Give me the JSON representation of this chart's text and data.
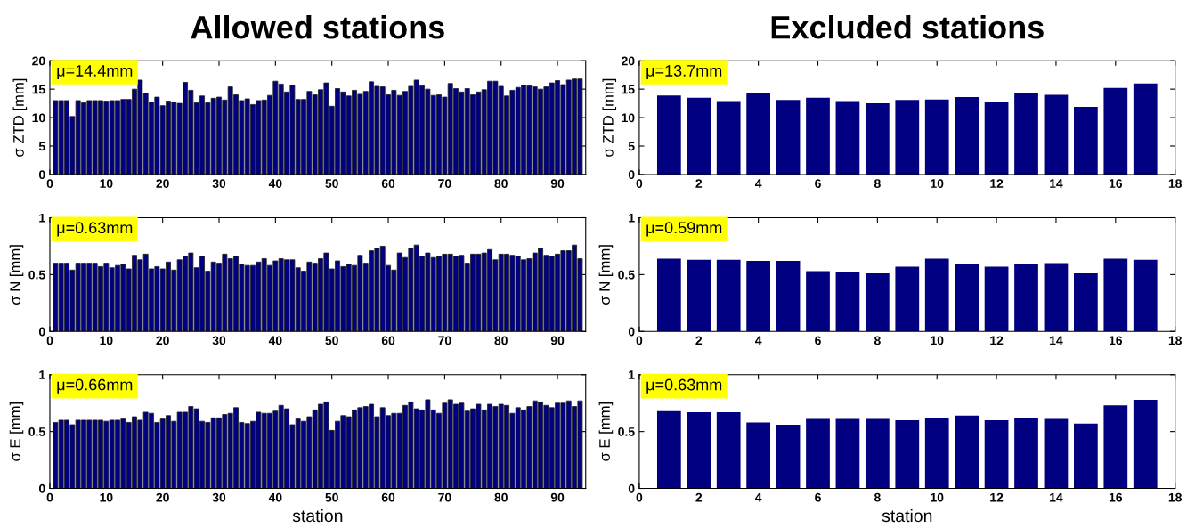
{
  "chart_data": [
    {
      "type": "bar",
      "title": "Allowed stations",
      "ylabel": "σ ZTD [mm]",
      "color": "#000080",
      "annotations": [
        "μ=14.4mm"
      ],
      "xlim": [
        0,
        95
      ],
      "xticks": [
        0,
        10,
        20,
        30,
        40,
        50,
        60,
        70,
        80,
        90
      ],
      "ylim": [
        0,
        20
      ],
      "yticks": [
        0,
        5,
        10,
        15,
        20
      ],
      "grid": false,
      "x": [
        1,
        2,
        3,
        4,
        5,
        6,
        7,
        8,
        9,
        10,
        11,
        12,
        13,
        14,
        15,
        16,
        17,
        18,
        19,
        20,
        21,
        22,
        23,
        24,
        25,
        26,
        27,
        28,
        29,
        30,
        31,
        32,
        33,
        34,
        35,
        36,
        37,
        38,
        39,
        40,
        41,
        42,
        43,
        44,
        45,
        46,
        47,
        48,
        49,
        50,
        51,
        52,
        53,
        54,
        55,
        56,
        57,
        58,
        59,
        60,
        61,
        62,
        63,
        64,
        65,
        66,
        67,
        68,
        69,
        70,
        71,
        72,
        73,
        74,
        75,
        76,
        77,
        78,
        79,
        80,
        81,
        82,
        83,
        84,
        85,
        86,
        87,
        88,
        89,
        90,
        91,
        92,
        93,
        94
      ],
      "values": [
        13.0,
        13.0,
        13.0,
        10.2,
        13.0,
        12.6,
        13.0,
        13.0,
        13.0,
        12.9,
        13.0,
        13.0,
        13.2,
        13.2,
        15.0,
        16.6,
        14.3,
        12.7,
        13.6,
        12.1,
        12.9,
        12.7,
        12.5,
        16.2,
        14.8,
        12.6,
        13.8,
        12.6,
        13.4,
        13.6,
        13.1,
        15.4,
        14.0,
        13.0,
        13.3,
        12.3,
        13.0,
        13.1,
        13.9,
        16.4,
        15.9,
        14.5,
        15.7,
        13.2,
        13.2,
        14.6,
        14.0,
        14.9,
        16.1,
        12.0,
        15.1,
        14.5,
        13.8,
        14.8,
        14.1,
        14.6,
        16.3,
        15.5,
        15.4,
        14.0,
        14.8,
        13.9,
        14.6,
        15.5,
        16.6,
        15.6,
        15.0,
        13.9,
        14.0,
        13.6,
        16.0,
        15.1,
        14.5,
        15.1,
        14.0,
        14.5,
        14.9,
        16.4,
        16.4,
        15.5,
        13.8,
        14.8,
        15.3,
        15.7,
        15.6,
        15.4,
        15.0,
        15.4,
        16.1,
        16.5,
        15.8,
        16.6,
        16.8,
        16.8
      ]
    },
    {
      "type": "bar",
      "title": "Excluded stations",
      "ylabel": "σ ZTD [mm]",
      "color": "#000080",
      "annotations": [
        "μ=13.7mm"
      ],
      "xlim": [
        0,
        18
      ],
      "xticks": [
        0,
        2,
        4,
        6,
        8,
        10,
        12,
        14,
        16,
        18
      ],
      "ylim": [
        0,
        20
      ],
      "yticks": [
        0,
        5,
        10,
        15,
        20
      ],
      "grid": false,
      "x": [
        1,
        2,
        3,
        4,
        5,
        6,
        7,
        8,
        9,
        10,
        11,
        12,
        13,
        14,
        15,
        16,
        17
      ],
      "values": [
        13.9,
        13.5,
        12.9,
        14.3,
        13.1,
        13.5,
        12.9,
        12.5,
        13.1,
        13.2,
        13.6,
        12.8,
        14.3,
        14.0,
        11.9,
        15.2,
        16.0
      ]
    },
    {
      "type": "bar",
      "ylabel": "σ N [mm]",
      "color": "#000080",
      "annotations": [
        "μ=0.63mm"
      ],
      "xlim": [
        0,
        95
      ],
      "xticks": [
        0,
        10,
        20,
        30,
        40,
        50,
        60,
        70,
        80,
        90
      ],
      "ylim": [
        0,
        1
      ],
      "yticks": [
        0,
        0.5,
        1
      ],
      "grid": false,
      "x": [
        1,
        2,
        3,
        4,
        5,
        6,
        7,
        8,
        9,
        10,
        11,
        12,
        13,
        14,
        15,
        16,
        17,
        18,
        19,
        20,
        21,
        22,
        23,
        24,
        25,
        26,
        27,
        28,
        29,
        30,
        31,
        32,
        33,
        34,
        35,
        36,
        37,
        38,
        39,
        40,
        41,
        42,
        43,
        44,
        45,
        46,
        47,
        48,
        49,
        50,
        51,
        52,
        53,
        54,
        55,
        56,
        57,
        58,
        59,
        60,
        61,
        62,
        63,
        64,
        65,
        66,
        67,
        68,
        69,
        70,
        71,
        72,
        73,
        74,
        75,
        76,
        77,
        78,
        79,
        80,
        81,
        82,
        83,
        84,
        85,
        86,
        87,
        88,
        89,
        90,
        91,
        92,
        93,
        94
      ],
      "values": [
        0.6,
        0.6,
        0.6,
        0.54,
        0.6,
        0.6,
        0.6,
        0.6,
        0.57,
        0.6,
        0.56,
        0.58,
        0.59,
        0.55,
        0.67,
        0.63,
        0.68,
        0.55,
        0.57,
        0.55,
        0.61,
        0.54,
        0.63,
        0.66,
        0.69,
        0.56,
        0.66,
        0.53,
        0.61,
        0.6,
        0.68,
        0.64,
        0.66,
        0.59,
        0.58,
        0.58,
        0.61,
        0.64,
        0.58,
        0.62,
        0.64,
        0.63,
        0.63,
        0.56,
        0.53,
        0.61,
        0.6,
        0.64,
        0.69,
        0.55,
        0.62,
        0.57,
        0.59,
        0.58,
        0.67,
        0.6,
        0.71,
        0.73,
        0.75,
        0.58,
        0.54,
        0.69,
        0.65,
        0.73,
        0.76,
        0.66,
        0.69,
        0.65,
        0.66,
        0.68,
        0.68,
        0.66,
        0.67,
        0.6,
        0.68,
        0.68,
        0.69,
        0.72,
        0.63,
        0.68,
        0.68,
        0.67,
        0.66,
        0.63,
        0.64,
        0.69,
        0.73,
        0.67,
        0.66,
        0.68,
        0.71,
        0.71,
        0.76,
        0.64
      ]
    },
    {
      "type": "bar",
      "ylabel": "σ N [mm]",
      "color": "#000080",
      "annotations": [
        "μ=0.59mm"
      ],
      "xlim": [
        0,
        18
      ],
      "xticks": [
        0,
        2,
        4,
        6,
        8,
        10,
        12,
        14,
        16,
        18
      ],
      "ylim": [
        0,
        1
      ],
      "yticks": [
        0,
        0.5,
        1
      ],
      "grid": false,
      "x": [
        1,
        2,
        3,
        4,
        5,
        6,
        7,
        8,
        9,
        10,
        11,
        12,
        13,
        14,
        15,
        16,
        17
      ],
      "values": [
        0.64,
        0.63,
        0.63,
        0.62,
        0.62,
        0.53,
        0.52,
        0.51,
        0.57,
        0.64,
        0.59,
        0.57,
        0.59,
        0.6,
        0.51,
        0.64,
        0.63
      ]
    },
    {
      "type": "bar",
      "ylabel": "σ E [mm]",
      "xlabel": "station",
      "color": "#000080",
      "annotations": [
        "μ=0.66mm"
      ],
      "xlim": [
        0,
        95
      ],
      "xticks": [
        0,
        10,
        20,
        30,
        40,
        50,
        60,
        70,
        80,
        90
      ],
      "ylim": [
        0,
        1
      ],
      "yticks": [
        0,
        0.5,
        1
      ],
      "grid": false,
      "x": [
        1,
        2,
        3,
        4,
        5,
        6,
        7,
        8,
        9,
        10,
        11,
        12,
        13,
        14,
        15,
        16,
        17,
        18,
        19,
        20,
        21,
        22,
        23,
        24,
        25,
        26,
        27,
        28,
        29,
        30,
        31,
        32,
        33,
        34,
        35,
        36,
        37,
        38,
        39,
        40,
        41,
        42,
        43,
        44,
        45,
        46,
        47,
        48,
        49,
        50,
        51,
        52,
        53,
        54,
        55,
        56,
        57,
        58,
        59,
        60,
        61,
        62,
        63,
        64,
        65,
        66,
        67,
        68,
        69,
        70,
        71,
        72,
        73,
        74,
        75,
        76,
        77,
        78,
        79,
        80,
        81,
        82,
        83,
        84,
        85,
        86,
        87,
        88,
        89,
        90,
        91,
        92,
        93,
        94
      ],
      "values": [
        0.58,
        0.6,
        0.6,
        0.56,
        0.6,
        0.6,
        0.6,
        0.6,
        0.6,
        0.59,
        0.6,
        0.6,
        0.61,
        0.58,
        0.63,
        0.6,
        0.67,
        0.66,
        0.58,
        0.61,
        0.64,
        0.59,
        0.67,
        0.67,
        0.72,
        0.7,
        0.59,
        0.58,
        0.62,
        0.62,
        0.65,
        0.66,
        0.71,
        0.58,
        0.57,
        0.59,
        0.67,
        0.66,
        0.66,
        0.68,
        0.73,
        0.7,
        0.56,
        0.61,
        0.59,
        0.63,
        0.69,
        0.74,
        0.76,
        0.51,
        0.59,
        0.64,
        0.63,
        0.69,
        0.71,
        0.72,
        0.74,
        0.63,
        0.71,
        0.64,
        0.66,
        0.66,
        0.73,
        0.76,
        0.7,
        0.69,
        0.78,
        0.69,
        0.66,
        0.75,
        0.78,
        0.74,
        0.75,
        0.68,
        0.7,
        0.74,
        0.69,
        0.74,
        0.72,
        0.74,
        0.73,
        0.66,
        0.71,
        0.69,
        0.72,
        0.77,
        0.76,
        0.73,
        0.71,
        0.75,
        0.75,
        0.77,
        0.72,
        0.77
      ]
    },
    {
      "type": "bar",
      "ylabel": "σ E [mm]",
      "xlabel": "station",
      "color": "#000080",
      "annotations": [
        "μ=0.63mm"
      ],
      "xlim": [
        0,
        18
      ],
      "xticks": [
        0,
        2,
        4,
        6,
        8,
        10,
        12,
        14,
        16,
        18
      ],
      "ylim": [
        0,
        1
      ],
      "yticks": [
        0,
        0.5,
        1
      ],
      "grid": false,
      "x": [
        1,
        2,
        3,
        4,
        5,
        6,
        7,
        8,
        9,
        10,
        11,
        12,
        13,
        14,
        15,
        16,
        17
      ],
      "values": [
        0.68,
        0.67,
        0.67,
        0.58,
        0.56,
        0.61,
        0.61,
        0.61,
        0.6,
        0.62,
        0.64,
        0.6,
        0.62,
        0.61,
        0.57,
        0.73,
        0.78
      ]
    }
  ]
}
